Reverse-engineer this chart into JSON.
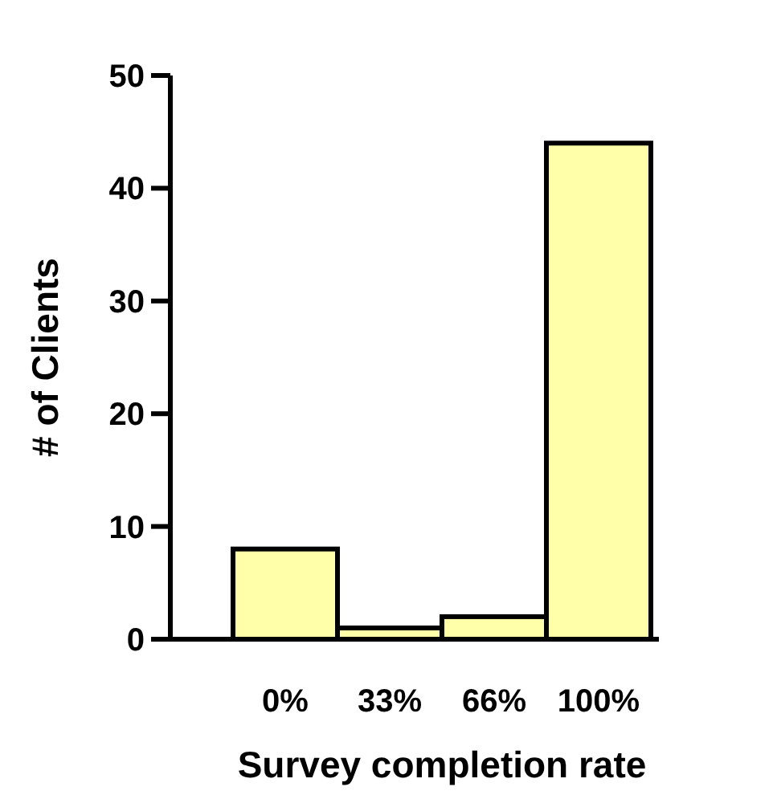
{
  "chart_data": {
    "type": "bar",
    "xlabel": "Survey completion rate",
    "ylabel": "# of Clients",
    "categories": [
      "0%",
      "33%",
      "66%",
      "100%"
    ],
    "values": [
      8,
      1,
      2,
      44
    ],
    "color": "#ffffaa",
    "ylim": [
      0,
      50
    ],
    "yticks": [
      0,
      10,
      20,
      30,
      40,
      50
    ],
    "grid": false
  }
}
